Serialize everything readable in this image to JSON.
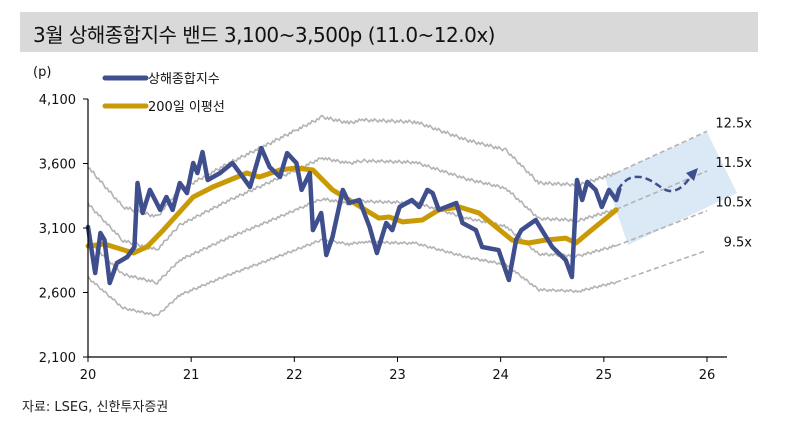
{
  "title": "3월 상해종합지수 밴드 3,100~3,500p (11.0~12.0x)",
  "source": "자료: LSEG, 신한투자증권",
  "colors": {
    "index": "#3f4e8c",
    "ma": "#c99a06",
    "band": "#b3b3b3",
    "projection": "#dbe8f5",
    "title_bg": "#d9d9d9"
  },
  "chart_data": {
    "type": "line",
    "title": "3월 상해종합지수 밴드 3,100~3,500p (11.0~12.0x)",
    "ylabel": "(p)",
    "xlabel": "",
    "ylim": [
      2100,
      4100
    ],
    "xlim": [
      2020,
      2026
    ],
    "y_ticks": [
      "4,100",
      "3,600",
      "3,100",
      "2,600",
      "2,100"
    ],
    "y_tick_values": [
      4100,
      3600,
      3100,
      2600,
      2100
    ],
    "x_ticks": [
      "20",
      "21",
      "22",
      "23",
      "24",
      "25",
      "26"
    ],
    "x_tick_values": [
      2020,
      2021,
      2022,
      2023,
      2024,
      2025,
      2026
    ],
    "grid": false,
    "legend": {
      "placement": "top-left",
      "entries": [
        "상해종합지수",
        "200일 이평선"
      ]
    },
    "series": [
      {
        "name": "상해종합지수",
        "points": [
          [
            2020.0,
            3108
          ],
          [
            2020.07,
            2751
          ],
          [
            2020.12,
            3061
          ],
          [
            2020.16,
            3007
          ],
          [
            2020.21,
            2674
          ],
          [
            2020.28,
            2829
          ],
          [
            2020.38,
            2875
          ],
          [
            2020.45,
            2953
          ],
          [
            2020.48,
            3449
          ],
          [
            2020.53,
            3216
          ],
          [
            2020.6,
            3395
          ],
          [
            2020.7,
            3240
          ],
          [
            2020.76,
            3340
          ],
          [
            2020.82,
            3240
          ],
          [
            2020.89,
            3449
          ],
          [
            2020.96,
            3371
          ],
          [
            2021.02,
            3604
          ],
          [
            2021.06,
            3526
          ],
          [
            2021.11,
            3689
          ],
          [
            2021.16,
            3472
          ],
          [
            2021.28,
            3526
          ],
          [
            2021.4,
            3604
          ],
          [
            2021.5,
            3495
          ],
          [
            2021.57,
            3418
          ],
          [
            2021.68,
            3720
          ],
          [
            2021.76,
            3573
          ],
          [
            2021.86,
            3495
          ],
          [
            2021.93,
            3681
          ],
          [
            2022.02,
            3604
          ],
          [
            2022.07,
            3395
          ],
          [
            2022.15,
            3526
          ],
          [
            2022.18,
            3084
          ],
          [
            2022.26,
            3216
          ],
          [
            2022.31,
            2891
          ],
          [
            2022.37,
            3030
          ],
          [
            2022.47,
            3395
          ],
          [
            2022.53,
            3294
          ],
          [
            2022.63,
            3317
          ],
          [
            2022.73,
            3108
          ],
          [
            2022.8,
            2906
          ],
          [
            2022.89,
            3139
          ],
          [
            2022.95,
            3084
          ],
          [
            2023.02,
            3263
          ],
          [
            2023.14,
            3317
          ],
          [
            2023.21,
            3263
          ],
          [
            2023.29,
            3395
          ],
          [
            2023.34,
            3371
          ],
          [
            2023.4,
            3240
          ],
          [
            2023.57,
            3294
          ],
          [
            2023.63,
            3139
          ],
          [
            2023.76,
            3084
          ],
          [
            2023.82,
            2953
          ],
          [
            2023.98,
            2929
          ],
          [
            2024.08,
            2697
          ],
          [
            2024.15,
            3007
          ],
          [
            2024.2,
            3084
          ],
          [
            2024.34,
            3162
          ],
          [
            2024.4,
            3084
          ],
          [
            2024.5,
            2953
          ],
          [
            2024.63,
            2852
          ],
          [
            2024.69,
            2720
          ],
          [
            2024.74,
            3472
          ],
          [
            2024.79,
            3317
          ],
          [
            2024.84,
            3457
          ],
          [
            2024.92,
            3395
          ],
          [
            2024.98,
            3263
          ],
          [
            2025.05,
            3395
          ],
          [
            2025.12,
            3317
          ],
          [
            2025.15,
            3400
          ]
        ]
      },
      {
        "name": "200일 이평선",
        "points": [
          [
            2020.0,
            2960
          ],
          [
            2020.16,
            2976
          ],
          [
            2020.44,
            2906
          ],
          [
            2020.57,
            2953
          ],
          [
            2020.73,
            3084
          ],
          [
            2021.02,
            3340
          ],
          [
            2021.21,
            3418
          ],
          [
            2021.54,
            3526
          ],
          [
            2021.66,
            3495
          ],
          [
            2021.86,
            3550
          ],
          [
            2022.02,
            3565
          ],
          [
            2022.18,
            3550
          ],
          [
            2022.37,
            3395
          ],
          [
            2022.58,
            3294
          ],
          [
            2022.82,
            3177
          ],
          [
            2022.92,
            3185
          ],
          [
            2023.05,
            3147
          ],
          [
            2023.24,
            3162
          ],
          [
            2023.4,
            3240
          ],
          [
            2023.6,
            3263
          ],
          [
            2023.79,
            3216
          ],
          [
            2024.11,
            3007
          ],
          [
            2024.27,
            2984
          ],
          [
            2024.44,
            3007
          ],
          [
            2024.63,
            3022
          ],
          [
            2024.73,
            2984
          ],
          [
            2024.88,
            3084
          ],
          [
            2025.12,
            3240
          ]
        ]
      }
    ],
    "pe_bands": {
      "labels": [
        "12.5x",
        "11.5x",
        "10.5x",
        "9.5x"
      ],
      "multiples": [
        12.5,
        11.5,
        10.5,
        9.5
      ],
      "band_12_5x_points": [
        [
          2020.0,
          3573
        ],
        [
          2020.34,
          3263
        ],
        [
          2020.67,
          3186
        ],
        [
          2020.89,
          3395
        ],
        [
          2021.37,
          3604
        ],
        [
          2021.69,
          3728
        ],
        [
          2022.02,
          3860
        ],
        [
          2022.27,
          3960
        ],
        [
          2022.53,
          3914
        ],
        [
          2022.66,
          3937
        ],
        [
          2023.18,
          3922
        ],
        [
          2023.67,
          3782
        ],
        [
          2024.05,
          3705
        ],
        [
          2024.37,
          3449
        ],
        [
          2024.76,
          3434
        ],
        [
          2025.12,
          3527
        ]
      ],
      "band_12_5x_projection_end": [
        2026.0,
        3850
      ]
    }
  }
}
